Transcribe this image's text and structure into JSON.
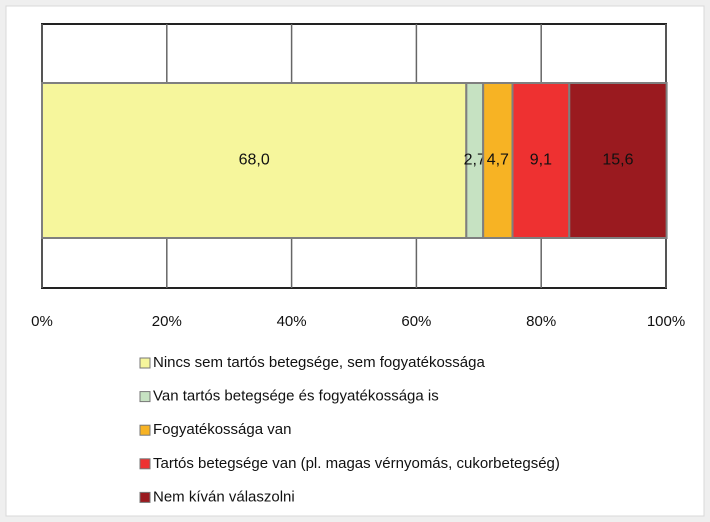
{
  "chart_data": {
    "type": "bar",
    "orientation": "horizontal",
    "stacked": true,
    "series": [
      {
        "name": "Nincs sem tartós betegsége, sem fogyatékossága",
        "color": "#f6f69c",
        "values": [
          68.0
        ],
        "value_labels": [
          "68,0"
        ]
      },
      {
        "name": "Van tartós betegsége és fogyatékossága is",
        "color": "#c6e2c2",
        "values": [
          2.7
        ],
        "value_labels": [
          "2,7"
        ]
      },
      {
        "name": "Fogyatékossága van",
        "color": "#f7b324",
        "values": [
          4.7
        ],
        "value_labels": [
          "4,7"
        ]
      },
      {
        "name": "Tartós betegsége van (pl. magas vérnyomás, cukorbetegség)",
        "color": "#ee3131",
        "values": [
          9.1
        ],
        "value_labels": [
          "9,1"
        ]
      },
      {
        "name": "Nem kíván válaszolni",
        "color": "#9a1a1f",
        "values": [
          15.6
        ],
        "value_labels": [
          "15,6"
        ]
      }
    ],
    "xlim": [
      0,
      100
    ],
    "xticks": [
      {
        "value": 0,
        "label": "0%"
      },
      {
        "value": 20,
        "label": "20%"
      },
      {
        "value": 40,
        "label": "40%"
      },
      {
        "value": 60,
        "label": "60%"
      },
      {
        "value": 80,
        "label": "80%"
      },
      {
        "value": 100,
        "label": "100%"
      }
    ],
    "grid": true
  }
}
